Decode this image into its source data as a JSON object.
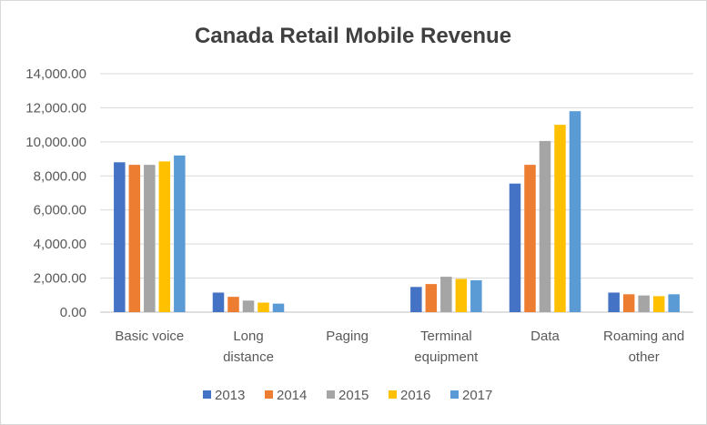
{
  "chart_data": {
    "type": "bar",
    "title": "Canada Retail Mobile Revenue",
    "xlabel": "",
    "ylabel": "",
    "ylim": [
      0,
      14000
    ],
    "ytick_step": 2000,
    "ytick_labels": [
      "0.00",
      "2,000.00",
      "4,000.00",
      "6,000.00",
      "8,000.00",
      "10,000.00",
      "12,000.00",
      "14,000.00"
    ],
    "grid": true,
    "legend_position": "bottom",
    "categories": [
      [
        "Basic voice"
      ],
      [
        "Long",
        "distance"
      ],
      [
        "Paging"
      ],
      [
        "Terminal",
        "equipment"
      ],
      [
        "Data"
      ],
      [
        "Roaming and",
        "other"
      ]
    ],
    "series": [
      {
        "name": "2013",
        "color": "#4472c4",
        "values": [
          8800,
          1150,
          0,
          1480,
          7550,
          1150
        ]
      },
      {
        "name": "2014",
        "color": "#ed7d31",
        "values": [
          8650,
          900,
          0,
          1650,
          8650,
          1050
        ]
      },
      {
        "name": "2015",
        "color": "#a5a5a5",
        "values": [
          8650,
          680,
          0,
          2080,
          10050,
          980
        ]
      },
      {
        "name": "2016",
        "color": "#ffc000",
        "values": [
          8850,
          560,
          0,
          1950,
          11000,
          940
        ]
      },
      {
        "name": "2017",
        "color": "#5b9bd5",
        "values": [
          9200,
          500,
          0,
          1870,
          11800,
          1050
        ]
      }
    ]
  }
}
